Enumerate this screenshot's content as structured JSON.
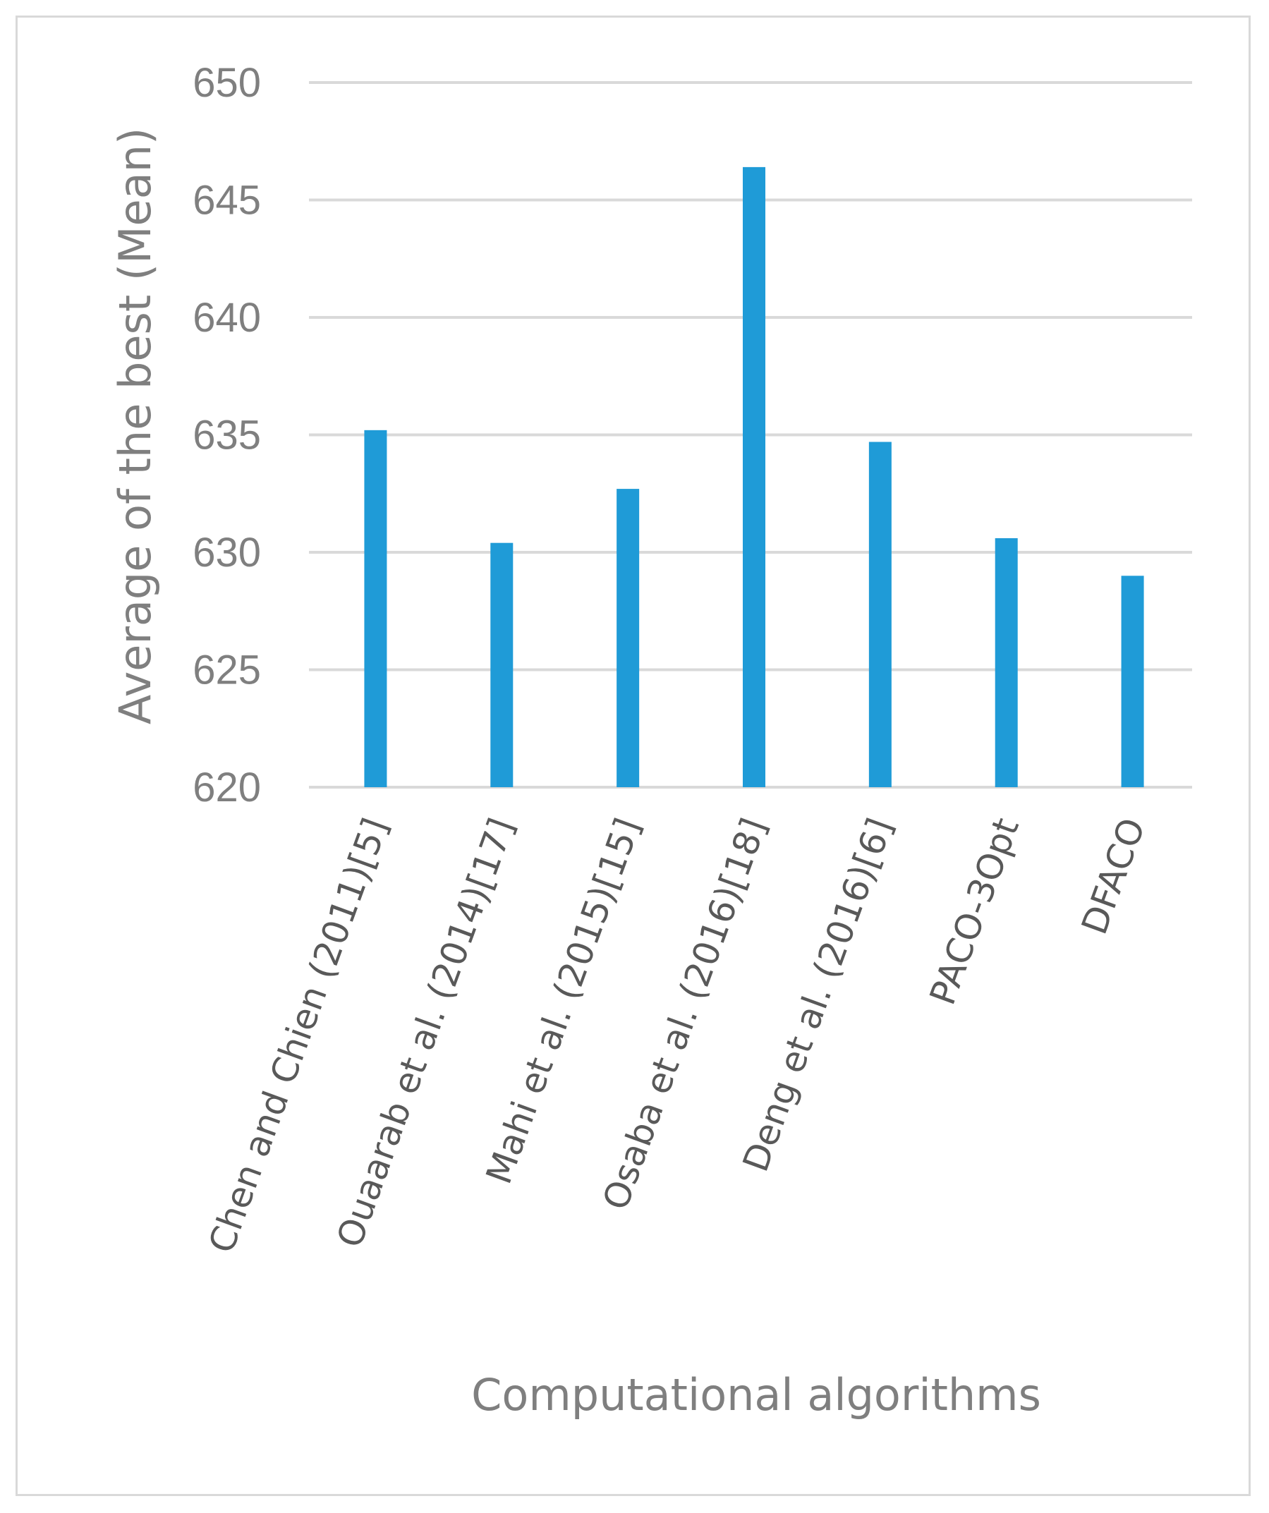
{
  "chart_data": {
    "type": "bar",
    "title": "",
    "xlabel": "Computational algorithms",
    "ylabel": "Average of the best  (Mean)",
    "categories": [
      "Chen and Chien (2011)[5]",
      "Ouaarab et al. (2014)[17]",
      "Mahi et al. (2015)[15]",
      "Osaba et al. (2016)[18]",
      "Deng et al. (2016)[6]",
      "PACO-3Opt",
      "DFACO"
    ],
    "values": [
      635.2,
      630.4,
      632.7,
      646.4,
      634.7,
      630.6,
      629.0
    ],
    "ylim": [
      620,
      650
    ],
    "yticks": [
      620,
      625,
      630,
      635,
      640,
      645,
      650
    ],
    "ytick_labels": [
      "620",
      "625",
      "630",
      "635",
      "640",
      "645",
      "650"
    ],
    "grid": true,
    "legend": "none",
    "colors": {
      "bar": "#1f9bd7",
      "grid": "#d9d9d9",
      "axis_text": "#7f7f7f",
      "category_text": "#595959"
    }
  }
}
